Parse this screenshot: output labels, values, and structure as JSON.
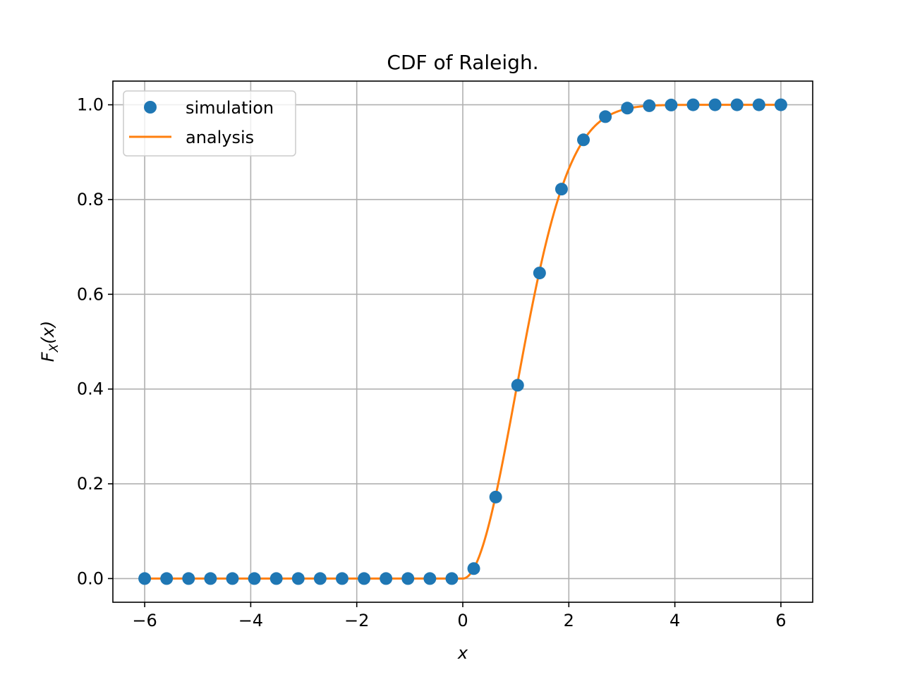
{
  "chart_data": {
    "type": "scatter",
    "title": "CDF of Raleigh.",
    "xlabel": "x",
    "ylabel": {
      "base": "F",
      "subscript": "X",
      "rest": "(x)"
    },
    "xlim": [
      -6.6,
      6.6
    ],
    "ylim": [
      -0.05,
      1.05
    ],
    "xticks": [
      -6,
      -4,
      -2,
      0,
      2,
      4,
      6
    ],
    "xtick_labels": [
      "−6",
      "−4",
      "−2",
      "0",
      "2",
      "4",
      "6"
    ],
    "yticks": [
      0.0,
      0.2,
      0.4,
      0.6,
      0.8,
      1.0
    ],
    "ytick_labels": [
      "0.0",
      "0.2",
      "0.4",
      "0.6",
      "0.8",
      "1.0"
    ],
    "grid": true,
    "legend": "upper-left",
    "series": [
      {
        "name": "simulation",
        "kind": "points",
        "color": "#1f77b4",
        "x": [
          -6.0,
          -5.5862,
          -5.1724,
          -4.7586,
          -4.3448,
          -3.931,
          -3.5172,
          -3.1034,
          -2.6897,
          -2.2759,
          -1.8621,
          -1.4483,
          -1.0345,
          -0.6207,
          -0.2069,
          0.2069,
          0.6207,
          1.0345,
          1.4483,
          1.8621,
          2.2759,
          2.6897,
          3.1034,
          3.5172,
          3.931,
          4.3448,
          4.7586,
          5.1724,
          5.5862,
          6.0
        ],
        "y": [
          0,
          0,
          0,
          0,
          0,
          0,
          0,
          0,
          0,
          0,
          0,
          0,
          0,
          0,
          0,
          0.021,
          0.172,
          0.408,
          0.645,
          0.822,
          0.926,
          0.975,
          0.993,
          0.998,
          0.9995,
          1.0,
          1.0,
          1.0,
          1.0,
          1.0
        ]
      },
      {
        "name": "analysis",
        "kind": "line",
        "color": "#ff7f0e",
        "sigma": 1.0,
        "x_range": [
          -6,
          6
        ],
        "samples": 600
      }
    ]
  }
}
